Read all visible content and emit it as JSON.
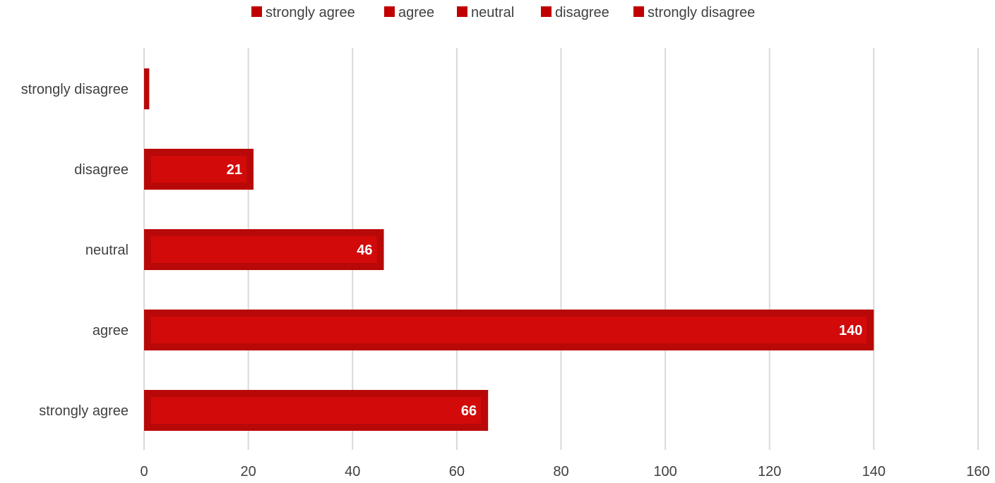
{
  "chart_data": {
    "type": "bar",
    "orientation": "horizontal",
    "categories": [
      "strongly agree",
      "agree",
      "neutral",
      "disagree",
      "strongly disagree"
    ],
    "series": [
      {
        "values": [
          66,
          140,
          46,
          21,
          1
        ],
        "data_labels": [
          "66",
          "140",
          "46",
          "21",
          ""
        ]
      }
    ],
    "legend": {
      "placement": "top",
      "entries": [
        "strongly agree",
        "agree",
        "neutral",
        "disagree",
        "strongly disagree"
      ]
    },
    "xlim": [
      0,
      160
    ],
    "x_ticks": [
      0,
      20,
      40,
      60,
      80,
      100,
      120,
      140,
      160
    ],
    "x_tick_labels": [
      "0",
      "20",
      "40",
      "60",
      "80",
      "100",
      "120",
      "140",
      "160"
    ],
    "grid": "vertical",
    "title": "",
    "xlabel": "",
    "ylabel": "",
    "colors": {
      "bar_fill": "#d20a0a",
      "bar_edge": "#b90808",
      "legend_swatch": "#c00000"
    }
  }
}
